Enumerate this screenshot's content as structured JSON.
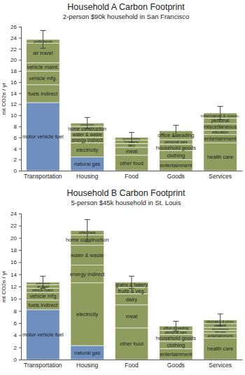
{
  "chart_data": [
    {
      "type": "bar",
      "stacked": true,
      "title": "Household A Carbon Footprint",
      "subtitle": "2-person $90k household in San Francisco",
      "y_label": "mt CO2e / yr",
      "ylim": [
        0,
        26
      ],
      "yticks": [
        0,
        2,
        4,
        6,
        8,
        10,
        12,
        14,
        16,
        18,
        20,
        22,
        24,
        26
      ],
      "categories": [
        "Transportation",
        "Housing",
        "Food",
        "Goods",
        "Services"
      ],
      "segments": [
        [
          {
            "name": "motor vehicle fuel",
            "value": 12.3,
            "color": "#6f8fbf"
          },
          {
            "name": "fuels indirect",
            "value": 3.2,
            "color": "#8e9d5e"
          },
          {
            "name": "vehicle mfg.",
            "value": 2.5,
            "color": "#8e9d5e"
          },
          {
            "name": "vehicle maint.",
            "value": 1.5,
            "color": "#8e9d5e"
          },
          {
            "name": "air travel",
            "value": 3.5,
            "color": "#8e9d5e"
          },
          {
            "name": "public transit",
            "value": 0.7,
            "color": "#8e9d5e"
          }
        ],
        [
          {
            "name": "natural gas",
            "value": 2.5,
            "color": "#6f8fbf"
          },
          {
            "name": "electricity",
            "value": 2.5,
            "color": "#8e9d5e"
          },
          {
            "name": "energy indirect",
            "value": 1.0,
            "color": "#8e9d5e"
          },
          {
            "name": "water & waste",
            "value": 1.0,
            "color": "#8e9d5e"
          },
          {
            "name": "home construction",
            "value": 1.0,
            "color": "#8e9d5e"
          },
          {
            "name": "other fuels",
            "value": 0.6,
            "color": "#8e9d5e"
          }
        ],
        [
          {
            "name": "other food",
            "value": 2.8,
            "color": "#8e9d5e"
          },
          {
            "name": "meat",
            "value": 1.4,
            "color": "#8e9d5e"
          },
          {
            "name": "dairy",
            "value": 0.7,
            "color": "#8e9d5e"
          },
          {
            "name": "fruits & veg.",
            "value": 0.6,
            "color": "#8e9d5e"
          },
          {
            "name": "grains & bakery",
            "value": 0.5,
            "color": "#8e9d5e"
          }
        ],
        [
          {
            "name": "entertainment",
            "value": 2.0,
            "color": "#8e9d5e"
          },
          {
            "name": "clothing",
            "value": 1.6,
            "color": "#8e9d5e"
          },
          {
            "name": "household goods",
            "value": 1.2,
            "color": "#8e9d5e"
          },
          {
            "name": "personal care",
            "value": 0.8,
            "color": "#8e9d5e"
          },
          {
            "name": "office & reading",
            "value": 1.6,
            "color": "#8e9d5e"
          }
        ],
        [
          {
            "name": "health care",
            "value": 5.0,
            "color": "#8e9d5e"
          },
          {
            "name": "entertainment",
            "value": 1.5,
            "color": "#8e9d5e"
          },
          {
            "name": "education",
            "value": 0.8,
            "color": "#8e9d5e"
          },
          {
            "name": "miscellaneous",
            "value": 1.2,
            "color": "#8e9d5e"
          },
          {
            "name": "personal",
            "value": 1.0,
            "color": "#8e9d5e"
          },
          {
            "name": "information & comm.",
            "value": 0.9,
            "color": "#8e9d5e"
          }
        ]
      ],
      "errors": [
        1.6,
        1.0,
        0.9,
        1.0,
        1.2
      ]
    },
    {
      "type": "bar",
      "stacked": true,
      "title": "Household B Carbon Footprint",
      "subtitle": "5-person $45k household in St. Louis",
      "y_label": "mt CO2e / yr",
      "ylim": [
        0,
        24
      ],
      "yticks": [
        0,
        2,
        4,
        6,
        8,
        10,
        12,
        14,
        16,
        18,
        20,
        22,
        24
      ],
      "categories": [
        "Transportation",
        "Housing",
        "Food",
        "Goods",
        "Services"
      ],
      "segments": [
        [
          {
            "name": "motor vehicle fuel",
            "value": 8.2,
            "color": "#6f8fbf"
          },
          {
            "name": "fuels indirect",
            "value": 1.6,
            "color": "#8e9d5e"
          },
          {
            "name": "vehicle mfg",
            "value": 1.2,
            "color": "#8e9d5e"
          },
          {
            "name": "vehicle maint.",
            "value": 0.7,
            "color": "#8e9d5e"
          },
          {
            "name": "air travel",
            "value": 0.6,
            "color": "#8e9d5e"
          },
          {
            "name": "public transit",
            "value": 0.4,
            "color": "#8e9d5e"
          }
        ],
        [
          {
            "name": "natural gas",
            "value": 2.3,
            "color": "#6f8fbf"
          },
          {
            "name": "electricity",
            "value": 10.3,
            "color": "#8e9d5e"
          },
          {
            "name": "energy indirect",
            "value": 2.9,
            "color": "#8e9d5e"
          },
          {
            "name": "water & waste",
            "value": 3.3,
            "color": "#8e9d5e"
          },
          {
            "name": "home construction",
            "value": 1.7,
            "color": "#8e9d5e"
          },
          {
            "name": "other fuels",
            "value": 0.7,
            "color": "#8e9d5e"
          }
        ],
        [
          {
            "name": "other food",
            "value": 5.2,
            "color": "#8e9d5e"
          },
          {
            "name": "meat",
            "value": 3.8,
            "color": "#8e9d5e"
          },
          {
            "name": "dairy",
            "value": 1.8,
            "color": "#8e9d5e"
          },
          {
            "name": "fruits & veg.",
            "value": 1.0,
            "color": "#8e9d5e"
          },
          {
            "name": "grains & bakery",
            "value": 0.9,
            "color": "#8e9d5e"
          }
        ],
        [
          {
            "name": "entertainment",
            "value": 1.8,
            "color": "#8e9d5e"
          },
          {
            "name": "clothing",
            "value": 1.2,
            "color": "#8e9d5e"
          },
          {
            "name": "household goods",
            "value": 1.1,
            "color": "#8e9d5e"
          },
          {
            "name": "personal care",
            "value": 0.7,
            "color": "#8e9d5e"
          },
          {
            "name": "office & reading",
            "value": 0.7,
            "color": "#8e9d5e"
          }
        ],
        [
          {
            "name": "health care",
            "value": 3.5,
            "color": "#8e9d5e"
          },
          {
            "name": "entertainment",
            "value": 0.8,
            "color": "#8e9d5e"
          },
          {
            "name": "education",
            "value": 0.5,
            "color": "#8e9d5e"
          },
          {
            "name": "miscellaneous",
            "value": 0.5,
            "color": "#8e9d5e"
          },
          {
            "name": "personal",
            "value": 0.6,
            "color": "#8e9d5e"
          },
          {
            "name": "information & comm.",
            "value": 0.6,
            "color": "#8e9d5e"
          }
        ]
      ],
      "errors": [
        1.0,
        1.8,
        1.0,
        0.8,
        1.0
      ]
    }
  ]
}
